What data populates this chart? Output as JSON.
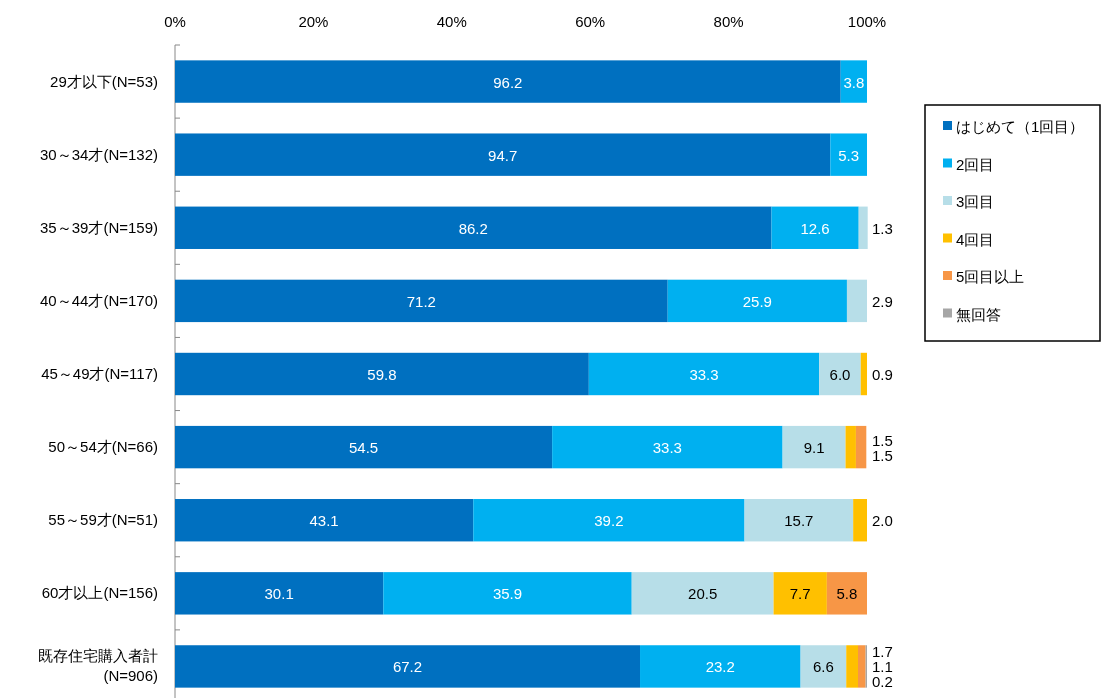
{
  "chart_data": {
    "type": "bar",
    "orientation": "horizontal",
    "stacked": true,
    "categories": [
      "29才以下(N=53)",
      "30～34才(N=132)",
      "35～39才(N=159)",
      "40～44才(N=170)",
      "45～49才(N=117)",
      "50～54才(N=66)",
      "55～59才(N=51)",
      "60才以上(N=156)",
      "既存住宅購入者計\n(N=906)"
    ],
    "series": [
      {
        "name": "はじめて（1回目）",
        "color": "#0070c0",
        "values": [
          96.2,
          94.7,
          86.2,
          71.2,
          59.8,
          54.5,
          43.1,
          30.1,
          67.2
        ],
        "value_labels": [
          "96.2",
          "94.7",
          "86.2",
          "71.2",
          "59.8",
          "54.5",
          "43.1",
          "30.1",
          "67.2"
        ]
      },
      {
        "name": "2回目",
        "color": "#00b0f0",
        "values": [
          3.8,
          5.3,
          12.6,
          25.9,
          33.3,
          33.3,
          39.2,
          35.9,
          23.2
        ],
        "value_labels": [
          "3.8",
          "5.3",
          "12.6",
          "25.9",
          "33.3",
          "33.3",
          "39.2",
          "35.9",
          "23.2"
        ]
      },
      {
        "name": "3回目",
        "color": "#b7dee8",
        "values": [
          null,
          null,
          1.3,
          2.9,
          6.0,
          9.1,
          15.7,
          20.5,
          6.6
        ],
        "value_labels": [
          null,
          null,
          "1.3",
          "2.9",
          "6.0",
          "9.1",
          "15.7",
          "20.5",
          "6.6"
        ]
      },
      {
        "name": "4回目",
        "color": "#ffc000",
        "values": [
          null,
          null,
          null,
          null,
          0.9,
          1.5,
          2.0,
          7.7,
          1.7
        ],
        "value_labels": [
          null,
          null,
          null,
          null,
          "0.9",
          "1.5",
          "2.0",
          "7.7",
          "1.7"
        ]
      },
      {
        "name": "5回目以上",
        "color": "#f79646",
        "values": [
          null,
          null,
          null,
          null,
          null,
          1.5,
          null,
          5.8,
          1.1
        ],
        "value_labels": [
          null,
          null,
          null,
          null,
          null,
          "1.5",
          null,
          "5.8",
          "1.1"
        ]
      },
      {
        "name": "無回答",
        "color": "#a6a6a6",
        "values": [
          null,
          null,
          null,
          null,
          null,
          null,
          null,
          null,
          0.2
        ],
        "value_labels": [
          null,
          null,
          null,
          null,
          null,
          null,
          null,
          null,
          "0.2"
        ]
      }
    ],
    "xlim": [
      0,
      100
    ],
    "xticks": [
      {
        "value": 0,
        "label": "0%"
      },
      {
        "value": 20,
        "label": "20%"
      },
      {
        "value": 40,
        "label": "40%"
      },
      {
        "value": 60,
        "label": "60%"
      },
      {
        "value": 80,
        "label": "80%"
      },
      {
        "value": 100,
        "label": "100%"
      }
    ],
    "grid": false,
    "legend": "right"
  }
}
